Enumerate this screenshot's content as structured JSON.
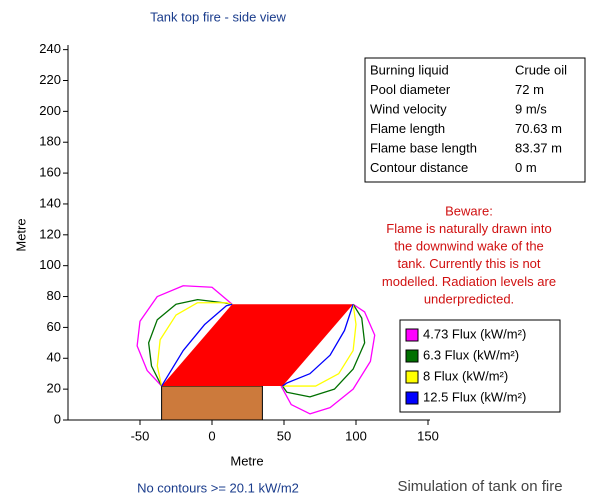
{
  "chart_data": {
    "type": "contour",
    "title": "Tank top fire - side view",
    "x_label": "Metre",
    "y_label": "Metre",
    "xlim": [
      -100,
      150
    ],
    "ylim": [
      0,
      243
    ],
    "xticks": [
      -50,
      0,
      50,
      100,
      150
    ],
    "yticks": [
      0,
      20,
      40,
      60,
      80,
      100,
      120,
      140,
      160,
      180,
      200,
      220,
      240
    ],
    "tank": {
      "color": "#cc7a3c",
      "x": [
        -35,
        35,
        35,
        -35
      ],
      "y": [
        0,
        0,
        22,
        22
      ]
    },
    "flame": {
      "color": "#ff0000",
      "x": [
        -35,
        49,
        98,
        14
      ],
      "y": [
        22,
        22,
        75,
        75
      ]
    },
    "series": [
      {
        "name": "4.73 Flux (kW/m²)",
        "color": "#ff00ff",
        "x": [
          -35,
          -45,
          -52,
          -50,
          -38,
          -20,
          0,
          14,
          null,
          98,
          106,
          113,
          110,
          98,
          82,
          68,
          55,
          48
        ],
        "y": [
          22,
          32,
          48,
          64,
          80,
          87,
          86,
          75,
          null,
          75,
          70,
          55,
          38,
          20,
          8,
          4,
          10,
          22
        ]
      },
      {
        "name": "6.3 Flux (kW/m²)",
        "color": "#007000",
        "x": [
          -35,
          -42,
          -44,
          -38,
          -25,
          -10,
          8,
          14,
          null,
          98,
          104,
          106,
          98,
          85,
          68,
          52,
          49
        ],
        "y": [
          22,
          35,
          50,
          65,
          75,
          78,
          76,
          75,
          null,
          75,
          66,
          50,
          33,
          20,
          15,
          18,
          22
        ]
      },
      {
        "name": "8 Flux (kW/m²)",
        "color": "#ffff00",
        "x": [
          -35,
          -38,
          -36,
          -25,
          -10,
          10,
          14,
          null,
          98,
          100,
          98,
          88,
          72,
          55,
          49
        ],
        "y": [
          22,
          35,
          52,
          68,
          76,
          76,
          75,
          null,
          75,
          62,
          45,
          30,
          22,
          22,
          22
        ]
      },
      {
        "name": "12.5 Flux (kW/m²)",
        "color": "#0000ff",
        "x": [
          -35,
          -20,
          -5,
          10,
          14,
          null,
          98,
          92,
          82,
          68,
          52,
          49
        ],
        "y": [
          22,
          45,
          62,
          74,
          75,
          null,
          75,
          58,
          42,
          30,
          24,
          22
        ]
      }
    ],
    "info": [
      [
        "Burning liquid",
        "Crude oil"
      ],
      [
        "Pool diameter",
        "72 m"
      ],
      [
        "Wind velocity",
        "9 m/s"
      ],
      [
        "Flame length",
        "70.63 m"
      ],
      [
        "Flame base length",
        "83.37 m"
      ],
      [
        "Contour distance",
        "0 m"
      ]
    ],
    "warning": [
      "Beware:",
      "Flame is naturally drawn into",
      "the downwind wake of the",
      "tank. Currently this is not",
      "modelled. Radiation levels are",
      "underpredicted."
    ],
    "footnote": "No contours >= 20.1 kW/m2",
    "caption": "Simulation of tank on fire"
  }
}
